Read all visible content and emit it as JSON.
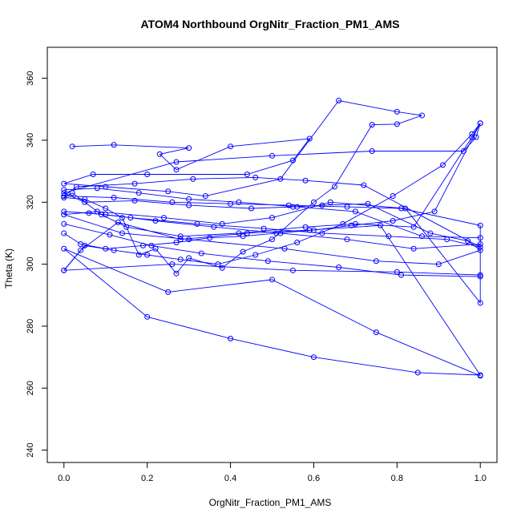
{
  "chart_data": {
    "type": "line",
    "title": "ATOM4 Northbound OrgNitr_Fraction_PM1_AMS",
    "xlabel": "OrgNitr_Fraction_PM1_AMS",
    "ylabel": "Theta (K)",
    "xlim": [
      -0.04,
      1.04
    ],
    "ylim": [
      236.0,
      370.0
    ],
    "x_ticks": [
      0.0,
      0.2,
      0.4,
      0.6,
      0.8,
      1.0
    ],
    "x_tick_labels": [
      "0.0",
      "0.2",
      "0.4",
      "0.6",
      "0.8",
      "1.0"
    ],
    "y_ticks": [
      240,
      260,
      280,
      300,
      320,
      340,
      360
    ],
    "y_tick_labels": [
      "240",
      "260",
      "280",
      "300",
      "320",
      "340",
      "360"
    ],
    "grid": false,
    "legend": "none",
    "markers": "open-circle",
    "series_color": "#0000ff",
    "series": [
      {
        "x": [
          0.02,
          0.12,
          0.3,
          0.23,
          0.27,
          0.4,
          0.59,
          0.55,
          0.44,
          0.2,
          0.07,
          0.0,
          0.1,
          0.25,
          0.34,
          0.52,
          0.66,
          0.8,
          0.86,
          0.8,
          0.74,
          0.65,
          0.6,
          0.5,
          0.43,
          0.38,
          0.3,
          0.27,
          0.22,
          0.18,
          0.14,
          0.1,
          0.05,
          0.0,
          0.02,
          0.09,
          0.15,
          0.28,
          0.42,
          0.58,
          0.7,
          0.84,
          0.98,
          1.0,
          0.99,
          0.96,
          0.74,
          0.5,
          0.27,
          0.0,
          0.05,
          0.17,
          0.3,
          0.45,
          0.55,
          0.62,
          0.73,
          0.88,
          0.97,
          1.0,
          0.9,
          0.75,
          0.53,
          0.3,
          0.14,
          0.0,
          0.08,
          0.24,
          0.38,
          0.5,
          0.64,
          0.82,
          1.0,
          1.0,
          0.8,
          0.55,
          0.26,
          0.0,
          0.04,
          0.13,
          0.28,
          0.44,
          0.59,
          0.76,
          1.0,
          0.85,
          0.6,
          0.4,
          0.2,
          0.0,
          0.25,
          0.5,
          0.75,
          1.0
        ],
        "y": [
          338.0,
          338.5,
          337.5,
          335.5,
          330.5,
          338.0,
          340.5,
          333.5,
          329.0,
          329.0,
          329.0,
          326.0,
          325.0,
          323.5,
          322.0,
          327.5,
          352.8,
          349.2,
          348.0,
          345.2,
          345.0,
          325.0,
          320.0,
          308.0,
          304.0,
          298.8,
          302.0,
          297.0,
          305.0,
          303.0,
          315.0,
          318.0,
          321.0,
          321.5,
          323.0,
          316.0,
          312.0,
          309.0,
          310.0,
          312.0,
          313.0,
          312.0,
          341.0,
          345.5,
          341.0,
          336.5,
          336.5,
          335.0,
          333.0,
          323.0,
          320.0,
          320.5,
          319.0,
          318.0,
          318.5,
          319.0,
          319.5,
          310.0,
          307.5,
          304.5,
          300.0,
          301.0,
          305.0,
          308.0,
          310.0,
          316.0,
          317.0,
          315.0,
          313.0,
          315.0,
          320.0,
          318.0,
          287.5,
          296.5,
          297.5,
          298.0,
          300.0,
          298.0,
          304.5,
          313.5,
          308.0,
          310.0,
          311.0,
          312.5,
          264.2,
          265.0,
          270.0,
          276.0,
          283.0,
          305.0,
          291.0,
          295.0,
          278.0,
          264.0
        ]
      },
      {
        "x": [
          0.0,
          0.08,
          0.18,
          0.3,
          0.42,
          0.56,
          0.7,
          0.86,
          1.0,
          1.0,
          0.84,
          0.68,
          0.52,
          0.36,
          0.22,
          0.1,
          0.0,
          0.06,
          0.16,
          0.32,
          0.48,
          0.62,
          0.78,
          0.92,
          1.0,
          0.72,
          0.58,
          0.46,
          0.31,
          0.17,
          0.03,
          0.0,
          0.12,
          0.26,
          0.4,
          0.54,
          0.68,
          0.81,
          1.0,
          1.0,
          0.81,
          0.66,
          0.49,
          0.33,
          0.21,
          0.11,
          0.0
        ],
        "y": [
          324.0,
          324.5,
          323.0,
          321.0,
          320.0,
          318.5,
          317.0,
          309.0,
          308.5,
          306.5,
          305.0,
          308.0,
          310.0,
          312.0,
          314.0,
          316.0,
          317.0,
          316.5,
          315.0,
          313.0,
          311.5,
          310.0,
          309.0,
          308.0,
          305.5,
          325.5,
          327.0,
          328.0,
          327.5,
          326.0,
          325.0,
          322.0,
          321.5,
          320.0,
          319.5,
          319.0,
          318.5,
          318.0,
          312.5,
          296.0,
          296.5,
          299.0,
          301.0,
          303.5,
          306.0,
          309.5,
          313.0
        ]
      },
      {
        "x": [
          0.0,
          0.04,
          0.1,
          0.19,
          0.27,
          0.35,
          0.43,
          0.51,
          0.6,
          0.69,
          0.79,
          0.89,
          1.0,
          0.98,
          0.91,
          0.79,
          0.67,
          0.56,
          0.46,
          0.37,
          0.28,
          0.2,
          0.12,
          0.05,
          0.0
        ],
        "y": [
          310.0,
          306.5,
          305.0,
          306.0,
          307.0,
          308.5,
          309.0,
          310.0,
          311.0,
          312.5,
          314.0,
          317.0,
          345.5,
          342.0,
          332.0,
          322.0,
          313.0,
          307.0,
          303.0,
          300.0,
          301.5,
          303.0,
          304.5,
          306.0,
          298.0
        ]
      }
    ]
  }
}
